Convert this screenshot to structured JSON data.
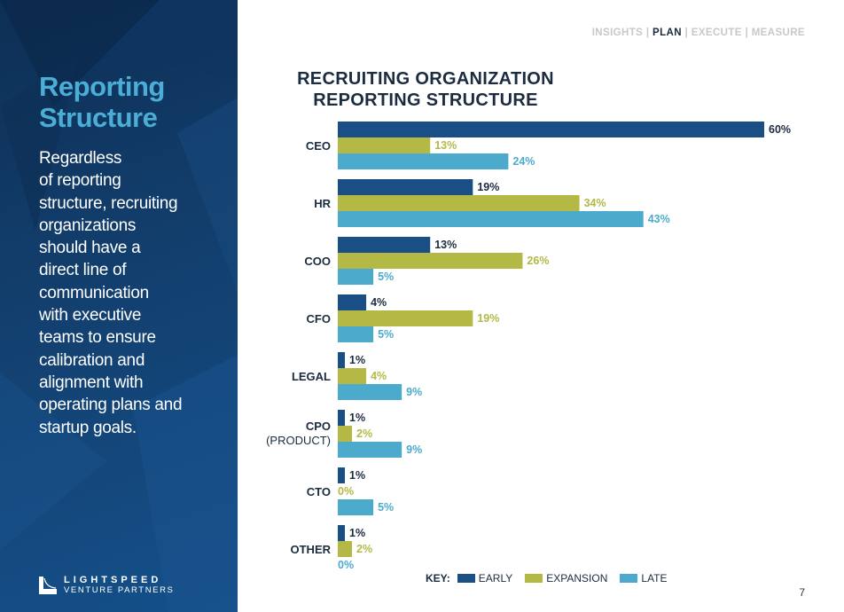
{
  "nav": {
    "items": [
      "INSIGHTS",
      "PLAN",
      "EXECUTE",
      "MEASURE"
    ],
    "active": "PLAN",
    "separator": "|"
  },
  "sidebar": {
    "title_line1": "Reporting",
    "title_line2": "Structure",
    "body_lines": [
      "Regardless",
      "of reporting",
      "structure, recruiting",
      "organizations",
      "should have a",
      "direct line of",
      "communication",
      "with executive",
      "teams to ensure",
      "calibration and",
      "alignment with",
      "operating plans and",
      "startup goals."
    ],
    "logo_line1": "LIGHTSPEED",
    "logo_line2": "VENTURE PARTNERS"
  },
  "page_number": "7",
  "colors": {
    "early": "#1a4f86",
    "expansion": "#b3b944",
    "late": "#4cabcd",
    "sidebar_title": "#4aaed6",
    "dark_text": "#1b2b40"
  },
  "chart_data": {
    "type": "bar",
    "orientation": "horizontal",
    "title": "RECRUITING ORGANIZATION REPORTING STRUCTURE",
    "title_line1": "RECRUITING ORGANIZATION",
    "title_line2": "REPORTING STRUCTURE",
    "categories": [
      {
        "label": "CEO",
        "sublabel": ""
      },
      {
        "label": "HR",
        "sublabel": ""
      },
      {
        "label": "COO",
        "sublabel": ""
      },
      {
        "label": "CFO",
        "sublabel": ""
      },
      {
        "label": "LEGAL",
        "sublabel": ""
      },
      {
        "label": "CPO",
        "sublabel": "(PRODUCT)"
      },
      {
        "label": "CTO",
        "sublabel": ""
      },
      {
        "label": "OTHER",
        "sublabel": ""
      }
    ],
    "series": [
      {
        "name": "EARLY",
        "key": "early",
        "values": [
          60,
          19,
          13,
          4,
          1,
          1,
          1,
          1
        ]
      },
      {
        "name": "EXPANSION",
        "key": "expansion",
        "values": [
          13,
          34,
          26,
          19,
          4,
          2,
          0,
          2
        ]
      },
      {
        "name": "LATE",
        "key": "late",
        "values": [
          24,
          43,
          5,
          5,
          9,
          9,
          5,
          0
        ]
      }
    ],
    "value_suffix": "%",
    "xlim": [
      0,
      60
    ],
    "grid": false,
    "legend_title": "KEY:",
    "legend_position": "bottom"
  }
}
